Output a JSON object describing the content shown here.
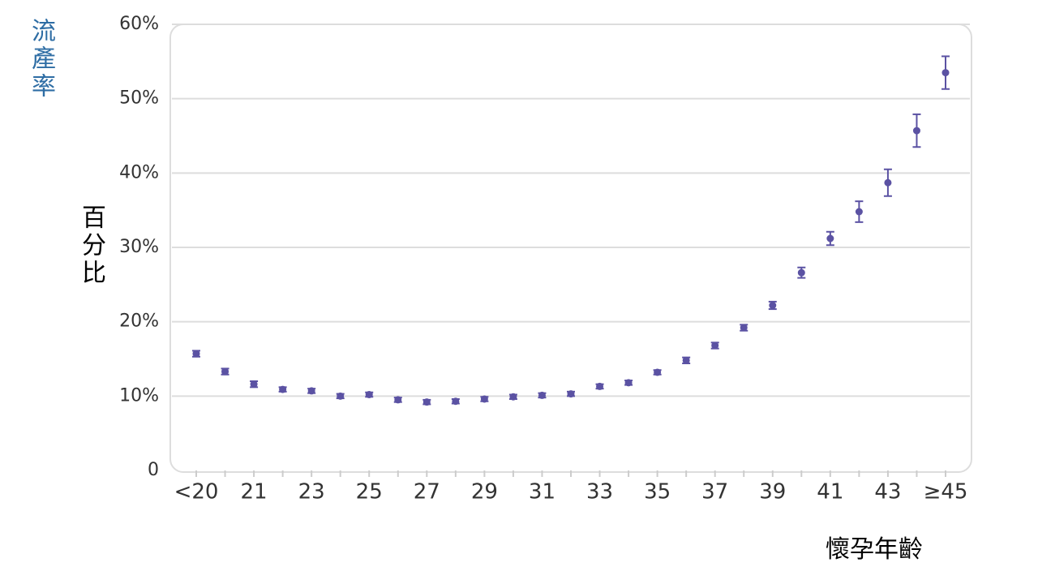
{
  "chart_data": {
    "type": "errorbar",
    "title": "流產率",
    "y_label": "百分比",
    "x_label": "懷孕年齡",
    "categories": [
      "<20",
      null,
      "21",
      null,
      "23",
      null,
      "25",
      null,
      "27",
      null,
      "29",
      null,
      "31",
      null,
      "33",
      null,
      "35",
      null,
      "37",
      null,
      "39",
      null,
      "41",
      null,
      "43",
      null,
      "≥45"
    ],
    "values": [
      15.7,
      13.3,
      11.6,
      10.9,
      10.7,
      10.0,
      10.2,
      9.5,
      9.2,
      9.3,
      9.6,
      9.9,
      10.1,
      10.3,
      11.3,
      11.8,
      13.2,
      14.8,
      16.8,
      19.2,
      22.2,
      26.6,
      31.2,
      34.8,
      38.7,
      45.7,
      53.5
    ],
    "errors": [
      0.4,
      0.4,
      0.4,
      0.3,
      0.3,
      0.3,
      0.3,
      0.3,
      0.3,
      0.3,
      0.3,
      0.3,
      0.3,
      0.3,
      0.3,
      0.3,
      0.3,
      0.4,
      0.4,
      0.4,
      0.5,
      0.7,
      0.9,
      1.4,
      1.8,
      2.2,
      2.2
    ],
    "color": "#5b52a3",
    "ylim": [
      0,
      60
    ],
    "yticks": [
      0,
      {
        "value": 10,
        "label": "10%"
      },
      {
        "value": 20,
        "label": "20%"
      },
      {
        "value": 30,
        "label": "30%"
      },
      {
        "value": 40,
        "label": "40%"
      },
      {
        "value": 50,
        "label": "50%"
      },
      {
        "value": 60,
        "label": "60%"
      }
    ],
    "grid": true
  }
}
